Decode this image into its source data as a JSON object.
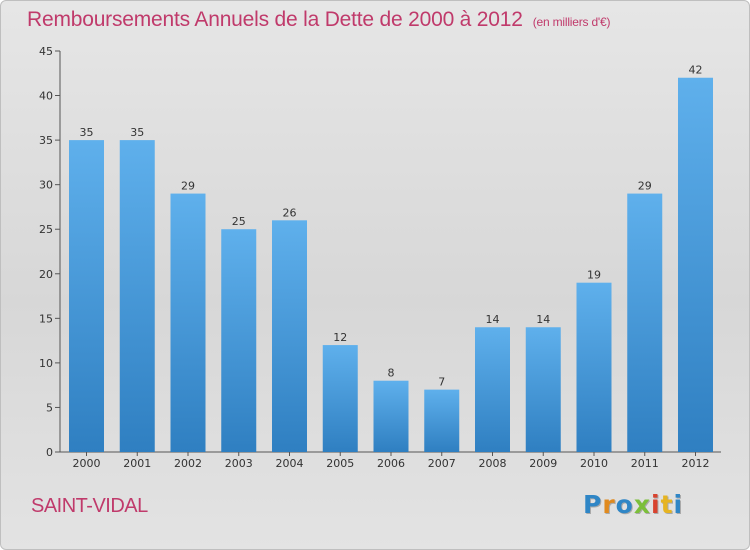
{
  "chart_data": {
    "type": "bar",
    "title": "Remboursements Annuels de la Dette de 2000 à 2012",
    "subtitle": "(en milliers d'€)",
    "categories": [
      "2000",
      "2001",
      "2002",
      "2003",
      "2004",
      "2005",
      "2006",
      "2007",
      "2008",
      "2009",
      "2010",
      "2011",
      "2012"
    ],
    "values": [
      35,
      35,
      29,
      25,
      26,
      12,
      8,
      7,
      14,
      14,
      19,
      29,
      42
    ],
    "ylim": [
      0,
      45
    ],
    "yticks": [
      0,
      5,
      10,
      15,
      20,
      25,
      30,
      35,
      40,
      45
    ],
    "grid": false,
    "bar_color": "#4a9ee0",
    "label": "SAINT-VIDAL"
  },
  "brand": {
    "text": "Proxiti"
  },
  "colors": {
    "title": "#c03a6b",
    "bar_top": "#5fb0ec",
    "bar_bottom": "#2f7fc1"
  }
}
